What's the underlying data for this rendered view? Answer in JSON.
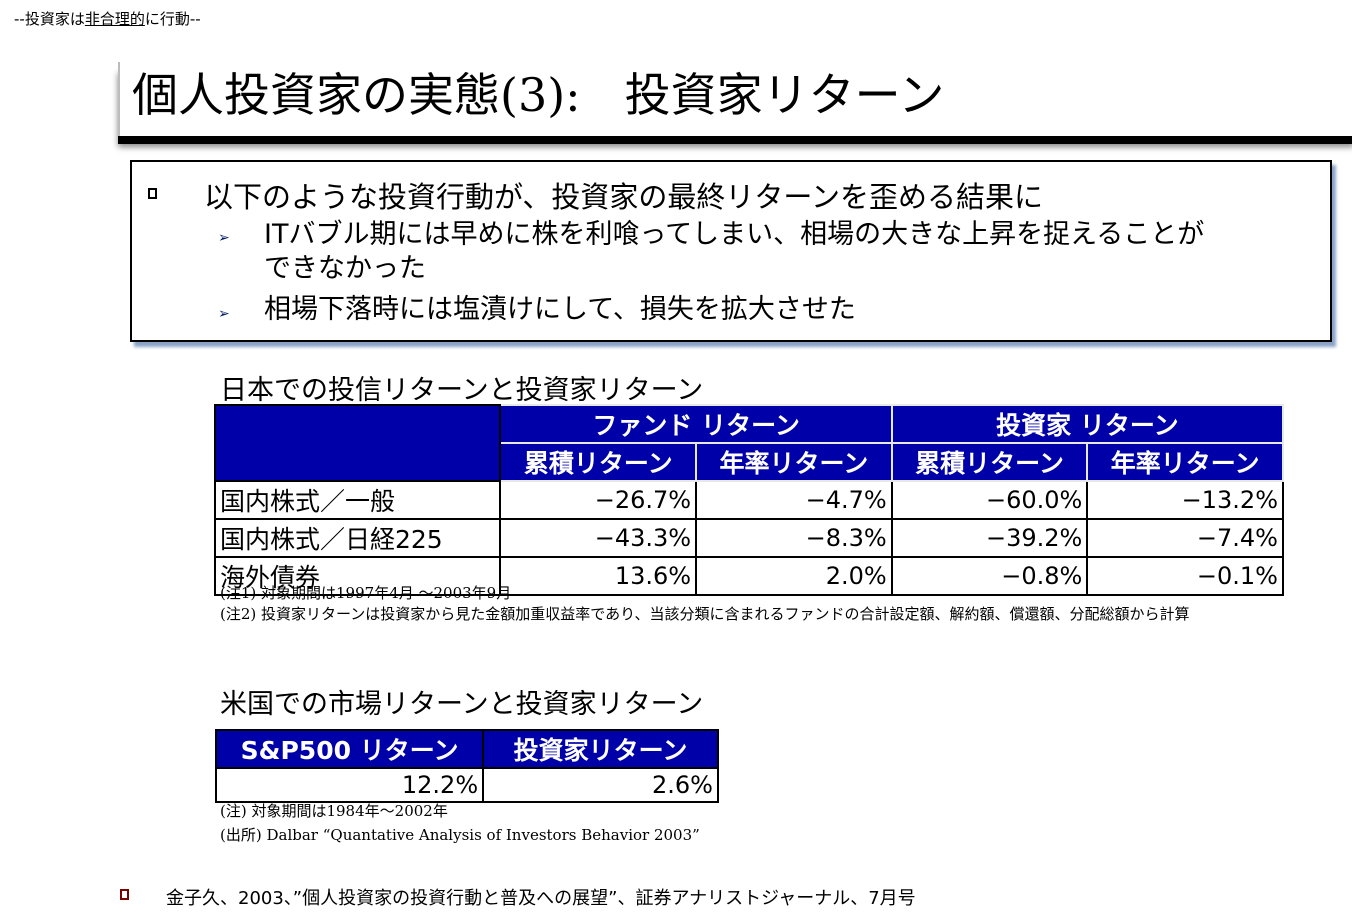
{
  "header": {
    "label_prefix": "--投資家は",
    "label_underlined": "非合理的",
    "label_suffix": "に行動--"
  },
  "title": {
    "part1": "個人投資家の実態",
    "part2": "(3):",
    "part3": "投資家リターン"
  },
  "summary": {
    "bullet": "以下のような投資行動が、投資家の最終リターンを歪める結果に",
    "sub1_line1": "ITバブル期には早めに株を利喰ってしまい、相場の大きな上昇を捉えることが",
    "sub1_line2": "できなかった",
    "sub2": "相場下落時には塩漬けにして、損失を拡大させた",
    "arrow_glyph": "➢"
  },
  "japan": {
    "title": "日本での投信リターンと投資家リターン",
    "group_headers": [
      "ファンド リターン",
      "投資家 リターン"
    ],
    "col_headers": [
      "累積リターン",
      "年率リターン",
      "累積リターン",
      "年率リターン"
    ],
    "rows": [
      {
        "label": "国内株式／一般",
        "values": [
          "−26.7%",
          "−4.7%",
          "−60.0%",
          "−13.2%"
        ]
      },
      {
        "label": "国内株式／日経225",
        "values": [
          "−43.3%",
          "−8.3%",
          "−39.2%",
          "−7.4%"
        ]
      },
      {
        "label": "海外債券",
        "values": [
          "13.6%",
          "2.0%",
          "−0.8%",
          "−0.1%"
        ]
      }
    ],
    "note1": "(注1) 対象期間は1997年4月 ～2003年9月",
    "note2": "(注2) 投資家リターンは投資家から見た金額加重収益率であり、当該分類に含まれるファンドの合計設定額、解約額、償還額、分配総額から計算"
  },
  "us": {
    "title": "米国での市場リターンと投資家リターン",
    "headers": [
      "S&P500 リターン",
      "投資家リターン"
    ],
    "values": [
      "12.2%",
      "2.6%"
    ],
    "note1": "(注) 対象期間は1984年～2002年",
    "note2": "(出所) Dalbar “Quantative Analysis of Investors Behavior 2003”"
  },
  "footer": {
    "citation": "金子久、2003、”個人投資家の投資行動と普及への展望”、証券アナリストジャーナル、7月号"
  },
  "colors": {
    "table_header_bg": "#0000a8",
    "box_shadow": "#8aa3c7",
    "footer_bullet": "#7a0000"
  }
}
